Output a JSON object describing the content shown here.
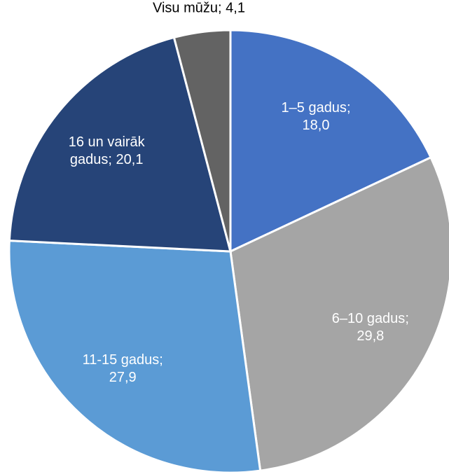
{
  "chart_data": {
    "type": "pie",
    "categories": [
      "1–5 gadus",
      "6–10 gadus",
      "11-15 gadus",
      "16 un vairāk gadus",
      "Visu mūžu"
    ],
    "values": [
      18.0,
      29.8,
      27.9,
      20.1,
      4.1
    ],
    "value_labels": [
      "18,0",
      "29,8",
      "27,9",
      "20,1",
      "4,1"
    ],
    "label_separator": ";",
    "colors": [
      "#4472c4",
      "#a5a5a5",
      "#5b9bd5",
      "#264478",
      "#636363"
    ],
    "label_colors": [
      "#ffffff",
      "#ffffff",
      "#ffffff",
      "#ffffff",
      "#000000"
    ]
  }
}
